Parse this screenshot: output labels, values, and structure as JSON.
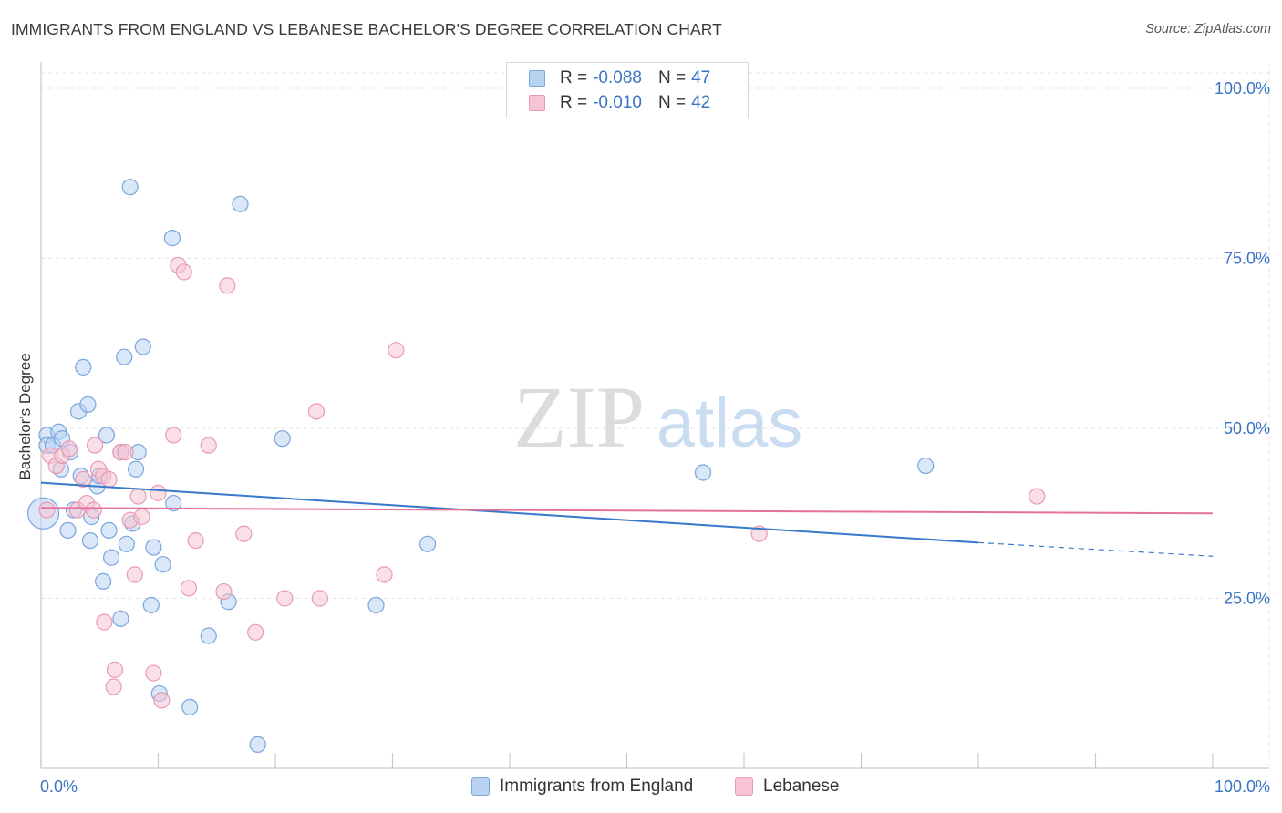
{
  "title": "IMMIGRANTS FROM ENGLAND VS LEBANESE BACHELOR'S DEGREE CORRELATION CHART",
  "source": "Source: ZipAtlas.com",
  "watermark": {
    "zip": "ZIP",
    "atlas": "atlas"
  },
  "legend_top": {
    "rows": [
      {
        "r_label": "R =",
        "r_value": "-0.088",
        "n_label": "N =",
        "n_value": "47"
      },
      {
        "r_label": "R =",
        "r_value": "-0.010",
        "n_label": "N =",
        "n_value": "42"
      }
    ]
  },
  "legend_bottom": {
    "items": [
      {
        "label": "Immigrants from England"
      },
      {
        "label": "Lebanese"
      }
    ]
  },
  "colors": {
    "blue_fill": "#b9d3f3",
    "blue_stroke": "#7aa5dd",
    "blue_line": "#3a78cc",
    "pink_fill": "#f8c4d4",
    "pink_stroke": "#e99ab4",
    "pink_line": "#e5709b",
    "tick_label": "#3a74c4",
    "grid": "#e4e4e4",
    "axis": "#c9c9c9"
  },
  "chart_data": {
    "type": "scatter",
    "title": "IMMIGRANTS FROM ENGLAND VS LEBANESE BACHELOR'S DEGREE CORRELATION CHART",
    "xlabel": "",
    "ylabel": "Bachelor's Degree",
    "xlim": [
      0,
      100
    ],
    "ylim": [
      0,
      100
    ],
    "x_tick_labels": [
      "0.0%",
      "100.0%"
    ],
    "y_tick_labels": [
      {
        "value": 100,
        "label": "100.0%"
      },
      {
        "value": 75,
        "label": "75.0%"
      },
      {
        "value": 50,
        "label": "50.0%"
      },
      {
        "value": 25,
        "label": "25.0%"
      }
    ],
    "grid": true,
    "legend_position": "top-center",
    "series": [
      {
        "name": "Immigrants from England",
        "color": "blue",
        "r": -0.088,
        "n": 47,
        "trend": {
          "x0": 0,
          "y0": 42.0,
          "x1": 80,
          "y1": 33.2,
          "dash_to_x": 100,
          "dash_to_y": 31.2
        },
        "points": [
          [
            0.2,
            37.5
          ],
          [
            0.5,
            49
          ],
          [
            0.5,
            47.5
          ],
          [
            1.0,
            47.5
          ],
          [
            1.5,
            49.5
          ],
          [
            1.7,
            44
          ],
          [
            1.8,
            48.5
          ],
          [
            2.3,
            35
          ],
          [
            2.5,
            46.5
          ],
          [
            2.8,
            38
          ],
          [
            3.2,
            52.5
          ],
          [
            3.4,
            43
          ],
          [
            3.6,
            59
          ],
          [
            4.0,
            53.5
          ],
          [
            4.2,
            33.5
          ],
          [
            4.3,
            37
          ],
          [
            4.8,
            41.5
          ],
          [
            5.0,
            43
          ],
          [
            5.3,
            27.5
          ],
          [
            5.6,
            49
          ],
          [
            5.8,
            35
          ],
          [
            6.0,
            31
          ],
          [
            6.8,
            46.5
          ],
          [
            6.8,
            22
          ],
          [
            7.1,
            60.5
          ],
          [
            7.3,
            33
          ],
          [
            7.6,
            85.5
          ],
          [
            7.8,
            36
          ],
          [
            8.1,
            44
          ],
          [
            8.3,
            46.5
          ],
          [
            8.7,
            62
          ],
          [
            9.4,
            24
          ],
          [
            9.6,
            32.5
          ],
          [
            10.1,
            11
          ],
          [
            10.4,
            30
          ],
          [
            11.3,
            39
          ],
          [
            11.2,
            78
          ],
          [
            12.7,
            9
          ],
          [
            14.3,
            19.5
          ],
          [
            16.0,
            24.5
          ],
          [
            17.0,
            83
          ],
          [
            18.5,
            3.5
          ],
          [
            20.6,
            48.5
          ],
          [
            28.6,
            24
          ],
          [
            33.0,
            33
          ],
          [
            56.5,
            43.5
          ],
          [
            75.5,
            44.5
          ]
        ]
      },
      {
        "name": "Lebanese",
        "color": "pink",
        "r": -0.01,
        "n": 42,
        "trend": {
          "x0": 0,
          "y0": 38.3,
          "x1": 100,
          "y1": 37.5
        },
        "points": [
          [
            0.5,
            38
          ],
          [
            0.8,
            46
          ],
          [
            1.3,
            44.5
          ],
          [
            1.8,
            46
          ],
          [
            2.4,
            47
          ],
          [
            3.1,
            38
          ],
          [
            3.6,
            42.5
          ],
          [
            3.9,
            39
          ],
          [
            4.5,
            38
          ],
          [
            4.6,
            47.5
          ],
          [
            4.9,
            44
          ],
          [
            5.3,
            43
          ],
          [
            5.4,
            21.5
          ],
          [
            5.8,
            42.5
          ],
          [
            6.2,
            12
          ],
          [
            6.3,
            14.5
          ],
          [
            6.8,
            46.5
          ],
          [
            7.2,
            46.5
          ],
          [
            7.6,
            36.5
          ],
          [
            8.0,
            28.5
          ],
          [
            8.3,
            40
          ],
          [
            8.6,
            37
          ],
          [
            9.6,
            14
          ],
          [
            10.0,
            40.5
          ],
          [
            10.3,
            10
          ],
          [
            11.3,
            49
          ],
          [
            11.7,
            74
          ],
          [
            12.2,
            73
          ],
          [
            12.6,
            26.5
          ],
          [
            13.2,
            33.5
          ],
          [
            14.3,
            47.5
          ],
          [
            15.6,
            26
          ],
          [
            15.9,
            71
          ],
          [
            17.3,
            34.5
          ],
          [
            18.3,
            20
          ],
          [
            20.8,
            25
          ],
          [
            23.5,
            52.5
          ],
          [
            23.8,
            25
          ],
          [
            29.3,
            28.5
          ],
          [
            30.3,
            61.5
          ],
          [
            61.3,
            34.5
          ],
          [
            85.0,
            40
          ]
        ]
      }
    ]
  }
}
